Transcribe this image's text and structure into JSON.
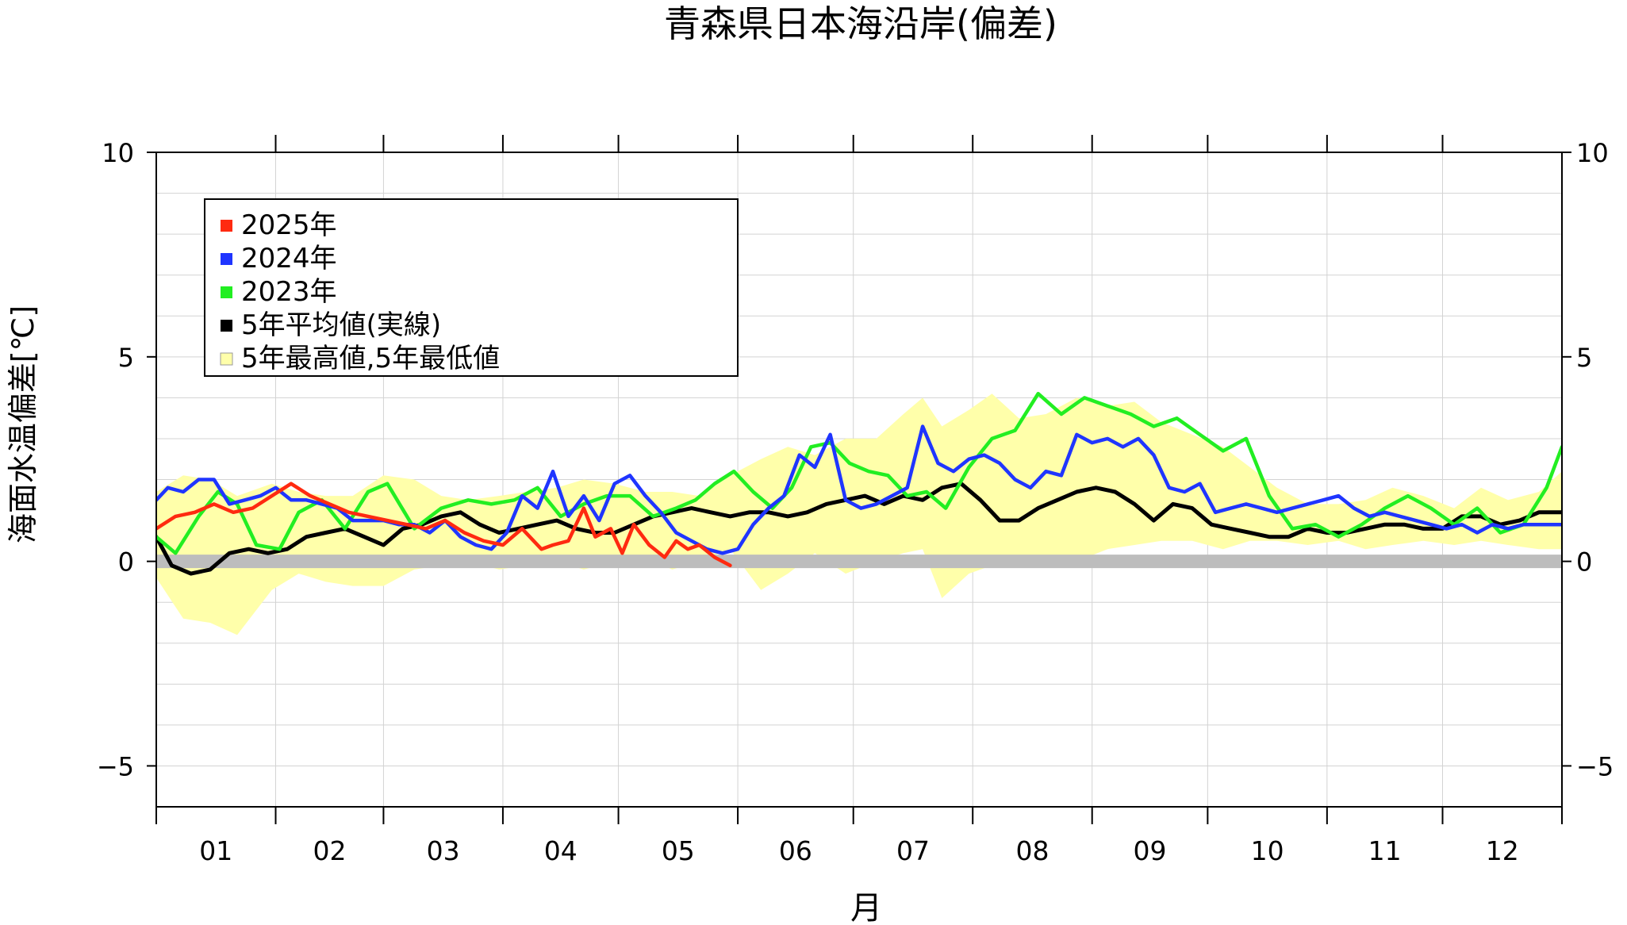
{
  "chart_data": {
    "type": "line",
    "title": "青森県日本海沿岸(偏差)",
    "xlabel": "月",
    "ylabel": "海面水温偏差[℃]",
    "ylim": [
      -6,
      10
    ],
    "yticks": [
      -5,
      0,
      5,
      10
    ],
    "ytick_labels": [
      "−5",
      "0",
      "5",
      "10"
    ],
    "ytick_labels_right": [
      "−5",
      "0",
      "5",
      "10"
    ],
    "months": [
      "01",
      "02",
      "03",
      "04",
      "05",
      "06",
      "07",
      "08",
      "09",
      "10",
      "11",
      "12"
    ],
    "x_unit": "day_of_year",
    "xlim": [
      1,
      366
    ],
    "grid": true,
    "legend_position": "top-left",
    "colors": {
      "2025": "#ff2a10",
      "2024": "#1f35ff",
      "2023": "#22ee22",
      "avg": "#000000",
      "band": "#ffffaa",
      "zero": "#bdbdbd"
    },
    "legend": [
      {
        "key": "2025",
        "label": "2025年",
        "marker": "square"
      },
      {
        "key": "2024",
        "label": "2024年",
        "marker": "square"
      },
      {
        "key": "2023",
        "label": "2023年",
        "marker": "square"
      },
      {
        "key": "avg",
        "label": "5年平均値(実線)",
        "marker": "square"
      },
      {
        "key": "band",
        "label": "5年最高値,5年最低値",
        "marker": "square"
      }
    ],
    "band_days": [
      1,
      8,
      15,
      22,
      31,
      38,
      45,
      52,
      60,
      68,
      75,
      82,
      90,
      97,
      105,
      112,
      120,
      128,
      135,
      142,
      150,
      158,
      165,
      172,
      180,
      188,
      195,
      200,
      205,
      212,
      218,
      225,
      232,
      240,
      248,
      255,
      262,
      270,
      278,
      285,
      292,
      300,
      308,
      315,
      322,
      330,
      338,
      345,
      352,
      360,
      366
    ],
    "band_upper": [
      1.7,
      2.1,
      2.0,
      1.6,
      1.9,
      1.7,
      1.6,
      1.6,
      2.1,
      2.0,
      1.6,
      1.5,
      1.6,
      1.7,
      1.8,
      2.0,
      1.9,
      1.7,
      1.7,
      1.6,
      2.1,
      2.5,
      2.8,
      2.6,
      3.0,
      3.0,
      3.6,
      4.0,
      3.3,
      3.7,
      4.1,
      3.5,
      3.6,
      4.0,
      3.8,
      3.9,
      3.4,
      3.1,
      2.8,
      2.3,
      1.8,
      1.4,
      1.4,
      1.5,
      1.8,
      1.6,
      1.3,
      1.8,
      1.5,
      1.7,
      2.2
    ],
    "band_lower": [
      -0.4,
      -1.4,
      -1.5,
      -1.8,
      -0.7,
      -0.3,
      -0.5,
      -0.6,
      -0.6,
      -0.2,
      -0.1,
      0.0,
      -0.2,
      -0.1,
      0.0,
      -0.2,
      0.0,
      0.1,
      -0.2,
      0.0,
      0.3,
      -0.7,
      -0.3,
      0.2,
      -0.3,
      0.0,
      0.2,
      0.3,
      -0.9,
      -0.3,
      -0.1,
      -0.1,
      0.1,
      0.0,
      0.3,
      0.4,
      0.5,
      0.5,
      0.3,
      0.5,
      0.5,
      0.4,
      0.5,
      0.3,
      0.4,
      0.5,
      0.4,
      0.5,
      0.4,
      0.3,
      0.3
    ],
    "series": [
      {
        "key": "avg",
        "name": "5年平均値(実線)",
        "x": [
          1,
          5,
          10,
          15,
          20,
          25,
          30,
          35,
          40,
          45,
          50,
          55,
          60,
          65,
          70,
          75,
          80,
          85,
          90,
          95,
          100,
          105,
          110,
          115,
          120,
          125,
          130,
          135,
          140,
          145,
          150,
          155,
          160,
          165,
          170,
          175,
          180,
          185,
          190,
          195,
          200,
          205,
          210,
          215,
          220,
          225,
          230,
          235,
          240,
          245,
          250,
          255,
          260,
          265,
          270,
          275,
          280,
          285,
          290,
          295,
          300,
          305,
          310,
          315,
          320,
          325,
          330,
          335,
          340,
          345,
          350,
          355,
          360,
          366
        ],
        "values": [
          0.6,
          -0.1,
          -0.3,
          -0.2,
          0.2,
          0.3,
          0.2,
          0.3,
          0.6,
          0.7,
          0.8,
          0.6,
          0.4,
          0.8,
          0.9,
          1.1,
          1.2,
          0.9,
          0.7,
          0.8,
          0.9,
          1.0,
          0.8,
          0.7,
          0.7,
          0.9,
          1.1,
          1.2,
          1.3,
          1.2,
          1.1,
          1.2,
          1.2,
          1.1,
          1.2,
          1.4,
          1.5,
          1.6,
          1.4,
          1.6,
          1.5,
          1.8,
          1.9,
          1.5,
          1.0,
          1.0,
          1.3,
          1.5,
          1.7,
          1.8,
          1.7,
          1.4,
          1.0,
          1.4,
          1.3,
          0.9,
          0.8,
          0.7,
          0.6,
          0.6,
          0.8,
          0.7,
          0.7,
          0.8,
          0.9,
          0.9,
          0.8,
          0.8,
          1.1,
          1.1,
          0.9,
          1.0,
          1.2,
          1.2
        ]
      },
      {
        "key": "2023",
        "name": "2023年",
        "x": [
          1,
          6,
          12,
          17,
          22,
          27,
          33,
          38,
          44,
          50,
          56,
          61,
          68,
          75,
          82,
          88,
          94,
          100,
          106,
          112,
          118,
          124,
          130,
          136,
          141,
          146,
          151,
          156,
          161,
          166,
          171,
          176,
          181,
          186,
          191,
          196,
          201,
          206,
          212,
          218,
          224,
          230,
          236,
          242,
          248,
          254,
          260,
          266,
          272,
          278,
          284,
          290,
          296,
          302,
          308,
          314,
          320,
          326,
          332,
          338,
          344,
          350,
          356,
          362,
          366
        ],
        "values": [
          0.6,
          0.2,
          1.1,
          1.7,
          1.4,
          0.4,
          0.3,
          1.2,
          1.5,
          0.8,
          1.7,
          1.9,
          0.8,
          1.3,
          1.5,
          1.4,
          1.5,
          1.8,
          1.1,
          1.4,
          1.6,
          1.6,
          1.1,
          1.3,
          1.5,
          1.9,
          2.2,
          1.7,
          1.3,
          1.8,
          2.8,
          2.9,
          2.4,
          2.2,
          2.1,
          1.6,
          1.7,
          1.3,
          2.3,
          3.0,
          3.2,
          4.1,
          3.6,
          4.0,
          3.8,
          3.6,
          3.3,
          3.5,
          3.1,
          2.7,
          3.0,
          1.6,
          0.8,
          0.9,
          0.6,
          0.9,
          1.3,
          1.6,
          1.3,
          0.9,
          1.3,
          0.7,
          0.9,
          1.8,
          2.8
        ]
      },
      {
        "key": "2024",
        "name": "2024年",
        "x": [
          1,
          4,
          8,
          12,
          16,
          20,
          24,
          28,
          32,
          36,
          40,
          44,
          48,
          52,
          56,
          60,
          64,
          68,
          72,
          76,
          80,
          84,
          88,
          92,
          96,
          100,
          104,
          108,
          112,
          116,
          120,
          124,
          128,
          132,
          136,
          140,
          144,
          148,
          152,
          156,
          160,
          164,
          168,
          172,
          176,
          180,
          184,
          188,
          192,
          196,
          200,
          204,
          208,
          212,
          216,
          220,
          224,
          228,
          232,
          236,
          240,
          244,
          248,
          252,
          256,
          260,
          264,
          268,
          272,
          276,
          280,
          284,
          288,
          292,
          296,
          300,
          304,
          308,
          312,
          316,
          320,
          324,
          328,
          332,
          336,
          340,
          344,
          348,
          352,
          356,
          360,
          366
        ],
        "values": [
          1.5,
          1.8,
          1.7,
          2.0,
          2.0,
          1.4,
          1.5,
          1.6,
          1.8,
          1.5,
          1.5,
          1.4,
          1.3,
          1.0,
          1.0,
          1.0,
          0.9,
          0.9,
          0.7,
          1.0,
          0.6,
          0.4,
          0.3,
          0.7,
          1.6,
          1.3,
          2.2,
          1.1,
          1.6,
          1.0,
          1.9,
          2.1,
          1.6,
          1.2,
          0.7,
          0.5,
          0.3,
          0.2,
          0.3,
          0.9,
          1.3,
          1.6,
          2.6,
          2.3,
          3.1,
          1.5,
          1.3,
          1.4,
          1.6,
          1.8,
          3.3,
          2.4,
          2.2,
          2.5,
          2.6,
          2.4,
          2.0,
          1.8,
          2.2,
          2.1,
          3.1,
          2.9,
          3.0,
          2.8,
          3.0,
          2.6,
          1.8,
          1.7,
          1.9,
          1.2,
          1.3,
          1.4,
          1.3,
          1.2,
          1.3,
          1.4,
          1.5,
          1.6,
          1.3,
          1.1,
          1.2,
          1.1,
          1.0,
          0.9,
          0.8,
          0.9,
          0.7,
          0.9,
          0.8,
          0.9,
          0.9,
          0.9
        ]
      },
      {
        "key": "2025",
        "name": "2025年",
        "x": [
          1,
          6,
          11,
          16,
          21,
          26,
          31,
          36,
          41,
          46,
          51,
          56,
          61,
          66,
          71,
          76,
          81,
          86,
          91,
          96,
          101,
          104,
          108,
          112,
          115,
          119,
          122,
          125,
          129,
          133,
          136,
          139,
          142,
          146,
          150
        ],
        "values": [
          0.8,
          1.1,
          1.2,
          1.4,
          1.2,
          1.3,
          1.6,
          1.9,
          1.6,
          1.4,
          1.2,
          1.1,
          1.0,
          0.9,
          0.8,
          1.0,
          0.7,
          0.5,
          0.4,
          0.8,
          0.3,
          0.4,
          0.5,
          1.3,
          0.6,
          0.8,
          0.2,
          0.9,
          0.4,
          0.1,
          0.5,
          0.3,
          0.4,
          0.1,
          -0.1
        ]
      }
    ]
  }
}
